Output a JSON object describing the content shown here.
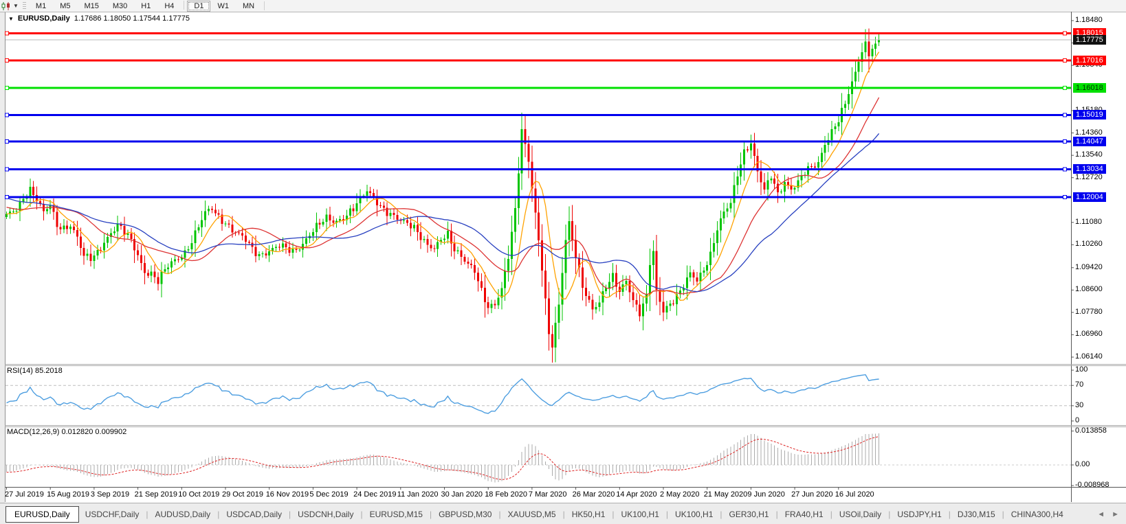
{
  "toolbar": {
    "chart_icon": "candlestick-chart-icon",
    "timeframes": [
      {
        "label": "M1",
        "active": false
      },
      {
        "label": "M5",
        "active": false
      },
      {
        "label": "M15",
        "active": false
      },
      {
        "label": "M30",
        "active": false
      },
      {
        "label": "H1",
        "active": false
      },
      {
        "label": "H4",
        "active": false
      },
      {
        "label": "D1",
        "active": true
      },
      {
        "label": "W1",
        "active": false
      },
      {
        "label": "MN",
        "active": false
      }
    ]
  },
  "window": {
    "title_symbol": "EURUSD,Daily",
    "title_ohlc": "1.17686 1.18050 1.17544 1.17775"
  },
  "chart_data": {
    "type": "candlestick",
    "symbol": "EURUSD",
    "timeframe": "Daily",
    "current_bar": {
      "open": 1.17686,
      "high": 1.1805,
      "low": 1.17544,
      "close": 1.17775
    },
    "price_axis": {
      "max": 1.1848,
      "min": 1.0614,
      "ticks": [
        "1.18480",
        "1.17660",
        "1.16840",
        "1.15180",
        "1.14360",
        "1.13540",
        "1.12720",
        "1.11080",
        "1.10260",
        "1.09420",
        "1.08600",
        "1.07780",
        "1.06960",
        "1.06140"
      ]
    },
    "levels": [
      {
        "label": "1.18015",
        "value": 1.18015,
        "color": "#ff0000",
        "text_color": "#ffffff"
      },
      {
        "label": "1.17016",
        "value": 1.17016,
        "color": "#ff0000",
        "text_color": "#ffffff"
      },
      {
        "label": "1.16018",
        "value": 1.16018,
        "color": "#00e000",
        "text_color": "#003300"
      },
      {
        "label": "1.15019",
        "value": 1.15019,
        "color": "#0000ee",
        "text_color": "#ffffff"
      },
      {
        "label": "1.14047",
        "value": 1.14047,
        "color": "#0000ee",
        "text_color": "#ffffff"
      },
      {
        "label": "1.13034",
        "value": 1.13034,
        "color": "#0000ee",
        "text_color": "#ffffff"
      },
      {
        "label": "1.12004",
        "value": 1.12004,
        "color": "#0000ee",
        "text_color": "#ffffff"
      }
    ],
    "current_price": {
      "label": "1.17775",
      "value": 1.17775,
      "color": "#111111",
      "text_color": "#ffffff",
      "line_color": "#b8b8b8"
    },
    "date_labels": [
      "27 Jul 2019",
      "15 Aug 2019",
      "3 Sep 2019",
      "21 Sep 2019",
      "10 Oct 2019",
      "29 Oct 2019",
      "16 Nov 2019",
      "5 Dec 2019",
      "24 Dec 2019",
      "11 Jan 2020",
      "30 Jan 2020",
      "18 Feb 2020",
      "7 Mar 2020",
      "26 Mar 2020",
      "14 Apr 2020",
      "2 May 2020",
      "21 May 2020",
      "9 Jun 2020",
      "27 Jun 2020",
      "16 Jul 2020"
    ],
    "bars_per_label": 13,
    "bars_total": 260,
    "candle_up_color": "#00c400",
    "candle_down_color": "#ee0000",
    "pre_anchors": [
      [
        -45,
        1.134
      ],
      [
        -35,
        1.129
      ],
      [
        -25,
        1.123
      ],
      [
        -15,
        1.119
      ],
      [
        -8,
        1.115
      ],
      [
        -1,
        1.1132
      ]
    ],
    "close_anchors": [
      [
        0,
        1.113
      ],
      [
        3,
        1.116
      ],
      [
        5,
        1.12
      ],
      [
        7,
        1.123
      ],
      [
        9,
        1.119
      ],
      [
        11,
        1.114
      ],
      [
        13,
        1.117
      ],
      [
        15,
        1.11
      ],
      [
        17,
        1.109
      ],
      [
        19,
        1.11
      ],
      [
        21,
        1.105
      ],
      [
        23,
        1.098
      ],
      [
        25,
        1.0975
      ],
      [
        27,
        1.1
      ],
      [
        29,
        1.104
      ],
      [
        31,
        1.107
      ],
      [
        33,
        1.1095
      ],
      [
        35,
        1.107
      ],
      [
        37,
        1.104
      ],
      [
        39,
        1.099
      ],
      [
        41,
        1.093
      ],
      [
        43,
        1.092
      ],
      [
        45,
        1.089
      ],
      [
        47,
        1.093
      ],
      [
        49,
        1.096
      ],
      [
        51,
        1.098
      ],
      [
        53,
        1.1
      ],
      [
        55,
        1.104
      ],
      [
        57,
        1.109
      ],
      [
        59,
        1.114
      ],
      [
        61,
        1.116
      ],
      [
        63,
        1.113
      ],
      [
        65,
        1.111
      ],
      [
        67,
        1.108
      ],
      [
        69,
        1.106
      ],
      [
        71,
        1.104
      ],
      [
        73,
        1.101
      ],
      [
        75,
        1.099
      ],
      [
        77,
        1.1
      ],
      [
        79,
        1.101
      ],
      [
        81,
        1.102
      ],
      [
        83,
        1.101
      ],
      [
        85,
        1.1
      ],
      [
        87,
        1.102
      ],
      [
        89,
        1.105
      ],
      [
        91,
        1.108
      ],
      [
        93,
        1.11
      ],
      [
        95,
        1.112
      ],
      [
        97,
        1.111
      ],
      [
        99,
        1.112
      ],
      [
        101,
        1.114
      ],
      [
        103,
        1.116
      ],
      [
        105,
        1.119
      ],
      [
        107,
        1.122
      ],
      [
        109,
        1.12
      ],
      [
        111,
        1.117
      ],
      [
        113,
        1.115
      ],
      [
        115,
        1.113
      ],
      [
        117,
        1.111
      ],
      [
        119,
        1.11
      ],
      [
        121,
        1.109
      ],
      [
        123,
        1.106
      ],
      [
        125,
        1.103
      ],
      [
        127,
        1.101
      ],
      [
        129,
        1.104
      ],
      [
        131,
        1.106
      ],
      [
        133,
        1.101
      ],
      [
        135,
        1.099
      ],
      [
        137,
        1.096
      ],
      [
        139,
        1.093
      ],
      [
        141,
        1.085
      ],
      [
        143,
        1.079
      ],
      [
        145,
        1.081
      ],
      [
        147,
        1.087
      ],
      [
        149,
        1.099
      ],
      [
        151,
        1.115
      ],
      [
        153,
        1.144
      ],
      [
        155,
        1.133
      ],
      [
        157,
        1.114
      ],
      [
        159,
        1.095
      ],
      [
        161,
        1.07
      ],
      [
        162,
        1.066
      ],
      [
        164,
        1.08
      ],
      [
        166,
        1.104
      ],
      [
        167,
        1.11
      ],
      [
        169,
        1.099
      ],
      [
        171,
        1.088
      ],
      [
        174,
        1.079
      ],
      [
        176,
        1.081
      ],
      [
        178,
        1.087
      ],
      [
        180,
        1.091
      ],
      [
        182,
        1.086
      ],
      [
        184,
        1.09
      ],
      [
        186,
        1.082
      ],
      [
        188,
        1.077
      ],
      [
        190,
        1.083
      ],
      [
        191,
        1.096
      ],
      [
        192,
        1.1
      ],
      [
        193,
        1.086
      ],
      [
        195,
        1.079
      ],
      [
        197,
        1.081
      ],
      [
        199,
        1.083
      ],
      [
        201,
        1.087
      ],
      [
        203,
        1.092
      ],
      [
        205,
        1.09
      ],
      [
        207,
        1.094
      ],
      [
        209,
        1.099
      ],
      [
        211,
        1.108
      ],
      [
        213,
        1.114
      ],
      [
        215,
        1.118
      ],
      [
        217,
        1.129
      ],
      [
        219,
        1.137
      ],
      [
        221,
        1.14
      ],
      [
        223,
        1.129
      ],
      [
        225,
        1.122
      ],
      [
        227,
        1.128
      ],
      [
        229,
        1.1215
      ],
      [
        231,
        1.126
      ],
      [
        233,
        1.123
      ],
      [
        235,
        1.125
      ],
      [
        237,
        1.129
      ],
      [
        239,
        1.131
      ],
      [
        241,
        1.133
      ],
      [
        243,
        1.14
      ],
      [
        245,
        1.144
      ],
      [
        247,
        1.148
      ],
      [
        249,
        1.154
      ],
      [
        251,
        1.162
      ],
      [
        253,
        1.17
      ],
      [
        255,
        1.177
      ],
      [
        256,
        1.172
      ],
      [
        257,
        1.1745
      ],
      [
        258,
        1.176
      ],
      [
        259,
        1.17775
      ]
    ],
    "moving_averages": [
      {
        "name": "fast",
        "period": 8,
        "color": "#ffa200"
      },
      {
        "name": "medium",
        "period": 20,
        "color": "#dd3333"
      },
      {
        "name": "slow",
        "period": 35,
        "color": "#2840c0"
      }
    ],
    "rsi": {
      "label": "RSI(14) 85.2018",
      "period": 14,
      "current": 85.2018,
      "color": "#4d9ee0",
      "ticks": [
        100,
        70,
        30,
        0
      ],
      "levels": [
        70,
        30
      ]
    },
    "macd": {
      "label": "MACD(12,26,9) 0.012820 0.009902",
      "fast": 12,
      "slow": 26,
      "signal": 9,
      "current_main": 0.01282,
      "current_signal": 0.009902,
      "hist_color": "#ababab",
      "signal_color": "#dd2222",
      "ticks": [
        0.013858,
        0.0,
        -0.008968
      ],
      "tick_labels": [
        "0.013858",
        "0.00",
        "-0.008968"
      ],
      "axis_max": 0.013858,
      "axis_min": -0.008968
    }
  },
  "tabs": {
    "items": [
      {
        "label": "EURUSD,Daily",
        "active": true
      },
      {
        "label": "USDCHF,Daily",
        "active": false
      },
      {
        "label": "AUDUSD,Daily",
        "active": false
      },
      {
        "label": "USDCAD,Daily",
        "active": false
      },
      {
        "label": "USDCNH,Daily",
        "active": false
      },
      {
        "label": "EURUSD,M15",
        "active": false
      },
      {
        "label": "GBPUSD,M30",
        "active": false
      },
      {
        "label": "XAUUSD,M5",
        "active": false
      },
      {
        "label": "HK50,H1",
        "active": false
      },
      {
        "label": "UK100,H1",
        "active": false
      },
      {
        "label": "UK100,H1",
        "active": false
      },
      {
        "label": "GER30,H1",
        "active": false
      },
      {
        "label": "FRA40,H1",
        "active": false
      },
      {
        "label": "USOil,Daily",
        "active": false
      },
      {
        "label": "USDJPY,H1",
        "active": false
      },
      {
        "label": "DJ30,M15",
        "active": false
      },
      {
        "label": "CHINA300,H4",
        "active": false
      }
    ],
    "scroll_left": "◄",
    "scroll_right": "►"
  }
}
